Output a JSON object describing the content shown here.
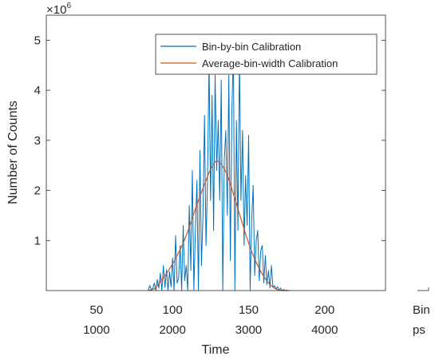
{
  "chart_data": {
    "type": "line",
    "xlabel": "Time",
    "ylabel": "Number of Counts",
    "y_exponent_label": {
      "base": "×10",
      "exp": "6"
    },
    "ylim": [
      0,
      5500000
    ],
    "xlim_bins": [
      17,
      240
    ],
    "yticks": [
      1000000,
      2000000,
      3000000,
      4000000,
      5000000
    ],
    "ytick_labels": [
      "1",
      "2",
      "3",
      "4",
      "5"
    ],
    "xticks_bins": [
      50,
      100,
      150,
      200
    ],
    "xtick_labels_bins": [
      "50",
      "100",
      "150",
      "200"
    ],
    "xtick_labels_ps": [
      "1000",
      "2000",
      "3000",
      "4000"
    ],
    "axis_unit_labels": [
      "Bin",
      "ps"
    ],
    "legend_position": "top-right",
    "series": [
      {
        "name": "Bin-by-bin Calibration",
        "color": "#0072BD",
        "x": [
          84,
          85,
          86,
          87,
          88,
          89,
          90,
          91,
          92,
          93,
          94,
          95,
          96,
          97,
          98,
          99,
          100,
          101,
          102,
          103,
          104,
          105,
          106,
          107,
          108,
          109,
          110,
          111,
          112,
          113,
          114,
          115,
          116,
          117,
          118,
          119,
          120,
          121,
          122,
          123,
          124,
          125,
          126,
          127,
          128,
          129,
          130,
          131,
          132,
          133,
          134,
          135,
          136,
          137,
          138,
          139,
          140,
          141,
          142,
          143,
          144,
          145,
          146,
          147,
          148,
          149,
          150,
          151,
          152,
          153,
          154,
          155,
          156,
          157,
          158,
          159,
          160,
          161,
          162,
          163,
          164,
          165,
          166,
          167,
          168,
          169,
          170,
          171,
          172,
          173,
          174,
          175,
          176,
          177
        ],
        "y": [
          0,
          100000,
          20000,
          40000,
          150000,
          0,
          220000,
          50000,
          350000,
          0,
          500000,
          60000,
          420000,
          0,
          380000,
          70000,
          650000,
          0,
          1100000,
          150000,
          250000,
          900000,
          0,
          1300000,
          200000,
          500000,
          0,
          1700000,
          400000,
          2400000,
          0,
          1200000,
          2200000,
          0,
          2800000,
          500000,
          1500000,
          3500000,
          900000,
          2200000,
          4600000,
          1800000,
          3900000,
          1200000,
          4300000,
          2400000,
          3400000,
          1800000,
          4200000,
          0,
          2600000,
          3200000,
          1500000,
          4300000,
          600000,
          3600000,
          4800000,
          0,
          3400000,
          1200000,
          4700000,
          1800000,
          3200000,
          900000,
          2300000,
          1300000,
          3100000,
          0,
          1400000,
          2100000,
          300000,
          1000000,
          1200000,
          200000,
          800000,
          900000,
          150000,
          700000,
          120000,
          400000,
          50000,
          500000,
          60000,
          100000,
          30000,
          80000,
          0,
          50000,
          0,
          20000,
          0,
          10000,
          0,
          0
        ]
      },
      {
        "name": "Average-bin-width Calibration",
        "color": "#D95319",
        "x": [
          84,
          86,
          88,
          90,
          92,
          94,
          96,
          98,
          100,
          102,
          104,
          106,
          108,
          110,
          112,
          114,
          116,
          118,
          120,
          122,
          124,
          126,
          128,
          129,
          130,
          132,
          134,
          136,
          138,
          140,
          142,
          144,
          146,
          148,
          150,
          152,
          154,
          156,
          158,
          160,
          162,
          164,
          166,
          168,
          170,
          172,
          174,
          176
        ],
        "y": [
          0,
          10000,
          40000,
          100000,
          180000,
          260000,
          340000,
          430000,
          530000,
          640000,
          760000,
          880000,
          1020000,
          1180000,
          1360000,
          1540000,
          1720000,
          1880000,
          2040000,
          2200000,
          2360000,
          2470000,
          2570000,
          2590000,
          2580000,
          2520000,
          2430000,
          2310000,
          2130000,
          1930000,
          1740000,
          1530000,
          1330000,
          1130000,
          950000,
          780000,
          630000,
          500000,
          380000,
          280000,
          190000,
          120000,
          70000,
          30000,
          10000,
          0,
          0,
          0
        ]
      }
    ]
  }
}
